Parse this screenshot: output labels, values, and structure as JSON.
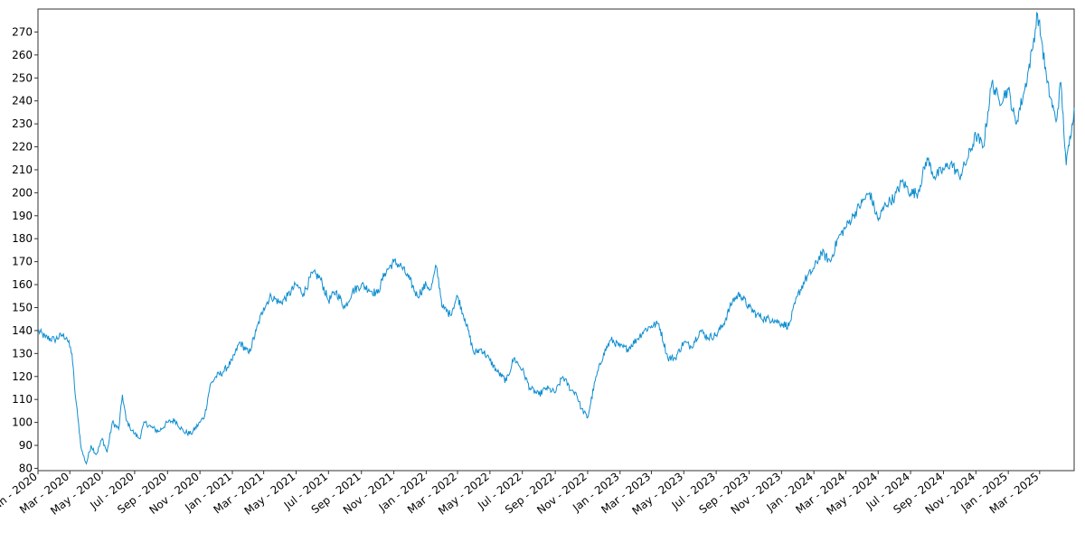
{
  "chart_data": {
    "type": "line",
    "title": "",
    "xlabel": "",
    "ylabel": "",
    "ylim": [
      79,
      280
    ],
    "grid": false,
    "line_color": "#0f8ed0",
    "y_ticks": [
      80,
      90,
      100,
      110,
      120,
      130,
      140,
      150,
      160,
      170,
      180,
      190,
      200,
      210,
      220,
      230,
      240,
      250,
      260,
      270
    ],
    "x_ticks": [
      "Jan - 2020",
      "Mar - 2020",
      "May - 2020",
      "Jul - 2020",
      "Sep - 2020",
      "Nov - 2020",
      "Jan - 2021",
      "Mar - 2021",
      "May - 2021",
      "Jul - 2021",
      "Sep - 2021",
      "Nov - 2021",
      "Jan - 2022",
      "Mar - 2022",
      "May - 2022",
      "Jul - 2022",
      "Sep - 2022",
      "Nov - 2022",
      "Jan - 2023",
      "Mar - 2023",
      "May - 2023",
      "Jul - 2023",
      "Sep - 2023",
      "Nov - 2023",
      "Jan - 2024",
      "Mar - 2024",
      "May - 2024",
      "Jul - 2024",
      "Sep - 2024",
      "Nov - 2024",
      "Jan - 2025",
      "Mar - 2025"
    ],
    "x_range": [
      "2020-01-01",
      "2025-05-05"
    ],
    "series": [
      {
        "x": [
          "2020-01-01",
          "2020-01-15",
          "2020-02-01",
          "2020-02-15",
          "2020-02-24",
          "2020-03-05",
          "2020-03-10",
          "2020-03-16",
          "2020-03-23",
          "2020-04-01",
          "2020-04-10",
          "2020-04-20",
          "2020-05-01",
          "2020-05-10",
          "2020-05-20",
          "2020-06-01",
          "2020-06-08",
          "2020-06-15",
          "2020-06-22",
          "2020-07-01",
          "2020-07-10",
          "2020-07-20",
          "2020-08-01",
          "2020-08-15",
          "2020-09-01",
          "2020-09-15",
          "2020-10-01",
          "2020-10-15",
          "2020-11-01",
          "2020-11-10",
          "2020-11-20",
          "2020-12-01",
          "2020-12-15",
          "2021-01-01",
          "2021-01-15",
          "2021-02-01",
          "2021-02-15",
          "2021-03-01",
          "2021-03-15",
          "2021-04-01",
          "2021-04-15",
          "2021-05-01",
          "2021-05-15",
          "2021-06-01",
          "2021-06-15",
          "2021-07-01",
          "2021-07-15",
          "2021-08-01",
          "2021-08-15",
          "2021-09-01",
          "2021-09-15",
          "2021-10-01",
          "2021-10-15",
          "2021-11-01",
          "2021-11-15",
          "2021-12-01",
          "2021-12-15",
          "2022-01-01",
          "2022-01-10",
          "2022-01-20",
          "2022-02-01",
          "2022-02-15",
          "2022-03-01",
          "2022-03-15",
          "2022-04-01",
          "2022-04-15",
          "2022-05-01",
          "2022-05-15",
          "2022-06-01",
          "2022-06-15",
          "2022-07-01",
          "2022-07-15",
          "2022-08-01",
          "2022-08-15",
          "2022-09-01",
          "2022-09-15",
          "2022-10-01",
          "2022-10-10",
          "2022-10-20",
          "2022-11-01",
          "2022-11-15",
          "2022-12-01",
          "2022-12-15",
          "2023-01-01",
          "2023-01-15",
          "2023-02-01",
          "2023-02-15",
          "2023-03-01",
          "2023-03-15",
          "2023-04-01",
          "2023-04-15",
          "2023-05-01",
          "2023-05-15",
          "2023-06-01",
          "2023-06-15",
          "2023-07-01",
          "2023-07-15",
          "2023-08-01",
          "2023-08-15",
          "2023-09-01",
          "2023-09-15",
          "2023-10-01",
          "2023-10-15",
          "2023-11-01",
          "2023-11-15",
          "2023-12-01",
          "2023-12-15",
          "2024-01-01",
          "2024-01-15",
          "2024-02-01",
          "2024-02-15",
          "2024-03-01",
          "2024-03-15",
          "2024-04-01",
          "2024-04-15",
          "2024-05-01",
          "2024-05-15",
          "2024-06-01",
          "2024-06-15",
          "2024-07-01",
          "2024-07-15",
          "2024-08-01",
          "2024-08-15",
          "2024-09-01",
          "2024-09-15",
          "2024-10-01",
          "2024-10-15",
          "2024-11-01",
          "2024-11-15",
          "2024-12-01",
          "2024-12-15",
          "2025-01-01",
          "2025-01-15",
          "2025-02-01",
          "2025-02-15",
          "2025-02-25",
          "2025-03-05",
          "2025-03-15",
          "2025-04-01",
          "2025-04-10",
          "2025-04-20",
          "2025-05-01",
          "2025-05-05"
        ],
        "y": [
          140,
          137,
          136,
          138,
          137,
          130,
          115,
          102,
          88,
          82,
          90,
          86,
          93,
          87,
          100,
          97,
          112,
          101,
          98,
          95,
          93,
          100,
          98,
          96,
          100,
          101,
          96,
          95,
          100,
          103,
          116,
          120,
          122,
          127,
          135,
          130,
          140,
          150,
          155,
          152,
          155,
          160,
          156,
          165,
          163,
          153,
          157,
          150,
          157,
          160,
          158,
          156,
          165,
          170,
          168,
          162,
          155,
          160,
          158,
          168,
          150,
          147,
          155,
          145,
          130,
          132,
          127,
          122,
          118,
          128,
          123,
          115,
          112,
          115,
          113,
          120,
          114,
          113,
          106,
          102,
          118,
          130,
          136,
          133,
          132,
          136,
          140,
          142,
          143,
          128,
          128,
          135,
          133,
          140,
          137,
          138,
          143,
          153,
          156,
          150,
          147,
          145,
          145,
          143,
          142,
          155,
          162,
          167,
          174,
          170,
          180,
          185,
          190,
          196,
          200,
          188,
          195,
          198,
          205,
          200,
          200,
          215,
          207,
          210,
          213,
          207,
          214,
          225,
          220,
          248,
          240,
          245,
          230,
          245,
          262,
          278,
          266,
          248,
          231,
          248,
          212,
          230,
          237
        ]
      }
    ]
  }
}
